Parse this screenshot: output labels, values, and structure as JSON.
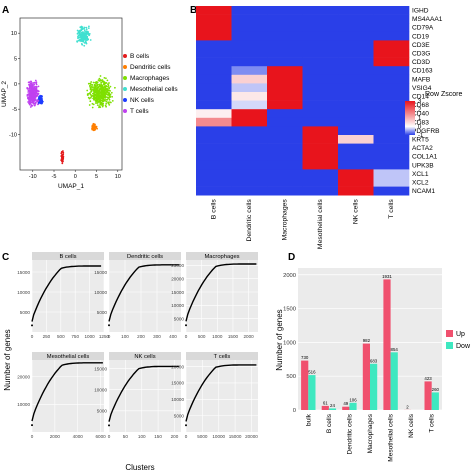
{
  "panel_labels": [
    "A",
    "B",
    "C",
    "D"
  ],
  "colors": {
    "b_cells": "#e41a1c",
    "dendritic_cells": "#ff7f00",
    "macrophages": "#7fe000",
    "mesothelial_cells": "#40e0d0",
    "nk_cells": "#1e3cff",
    "t_cells": "#c040f0",
    "heat_low": "#2a3fe8",
    "heat_mid": "#ffffff",
    "heat_high": "#e8141c",
    "up": "#f0506e",
    "down": "#3ee8c0"
  },
  "chart_data": [
    {
      "type": "scatter",
      "panel": "A",
      "xlabel": "UMAP_1",
      "ylabel": "UMAP_2",
      "xticks": [
        "-10",
        "-5",
        "0",
        "5",
        "10"
      ],
      "yticks": [
        "10",
        "5",
        "0",
        "-5",
        "-10"
      ],
      "xlim": [
        -13,
        11
      ],
      "ylim": [
        -17,
        13
      ],
      "legend": [
        "B cells",
        "Dendritic cells",
        "Macrophages",
        "Mesothelial cells",
        "NK cells",
        "T cells"
      ],
      "legend_position": "right",
      "clusters": [
        {
          "name": "B cells",
          "center": [
            -3,
            -14.5
          ],
          "spread": [
            0.4,
            1.5
          ]
        },
        {
          "name": "Dendritic cells",
          "center": [
            4.5,
            -8.5
          ],
          "spread": [
            0.8,
            0.9
          ]
        },
        {
          "name": "Macrophages",
          "center": [
            6,
            -1.8
          ],
          "spread": [
            3.5,
            3.8
          ]
        },
        {
          "name": "Mesothelial cells",
          "center": [
            2,
            9.5
          ],
          "spread": [
            2.0,
            2.5
          ]
        },
        {
          "name": "NK cells",
          "center": [
            -8.2,
            -3.2
          ],
          "spread": [
            1.0,
            1.0
          ]
        },
        {
          "name": "T cells",
          "center": [
            -10,
            -2
          ],
          "spread": [
            1.7,
            3.2
          ]
        }
      ]
    },
    {
      "type": "heatmap",
      "panel": "B",
      "columns": [
        "B cells",
        "Dendritic cells",
        "Macrophages",
        "Mesothelial cells",
        "NK cells",
        "T cells"
      ],
      "rows": [
        "IGHD",
        "MS4AAA1",
        "CD79A",
        "CD19",
        "CD3E",
        "CD3G",
        "CD3D",
        "CD163",
        "MAFB",
        "VSIG4",
        "CD14",
        "CD68",
        "CD40",
        "CD83",
        "PDGFRB",
        "KRT5",
        "ACTA2",
        "COL1A1",
        "UPK3B",
        "XCL1",
        "XCL2",
        "NCAM1"
      ],
      "values": [
        [
          3,
          -1,
          -1,
          -1,
          -1,
          -1
        ],
        [
          3,
          -1,
          -1,
          -1,
          -1,
          -1
        ],
        [
          3,
          -1,
          -1,
          -1,
          -1,
          -1
        ],
        [
          3,
          -1,
          -1,
          -1,
          -1,
          -1
        ],
        [
          -1,
          -1,
          -1,
          -1,
          -1,
          3
        ],
        [
          -1,
          -1,
          -1,
          -1,
          -1,
          3
        ],
        [
          -1,
          -1,
          -1,
          -1,
          -1,
          3
        ],
        [
          -1,
          -0.6,
          3,
          -1,
          -1,
          -1
        ],
        [
          -1,
          0.6,
          3,
          -1,
          -1,
          -1
        ],
        [
          -1,
          -0.3,
          3,
          -1,
          -1,
          -1
        ],
        [
          -1,
          0.3,
          3,
          -1,
          -1,
          -1
        ],
        [
          -1,
          -0.2,
          3,
          -1,
          -1,
          -1
        ],
        [
          0.2,
          3,
          -1,
          -1,
          -1,
          -1
        ],
        [
          1.5,
          3,
          -1,
          -1,
          -1,
          -1
        ],
        [
          -1,
          -1,
          -1,
          3,
          -1,
          -1
        ],
        [
          -1,
          -1,
          -1,
          3,
          0.6,
          -1
        ],
        [
          -1,
          -1,
          -1,
          3,
          -1,
          -1
        ],
        [
          -1,
          -1,
          -1,
          3,
          -1,
          -1
        ],
        [
          -1,
          -1,
          -1,
          3,
          -1,
          -1
        ],
        [
          -1,
          -1,
          -1,
          -1,
          3,
          -0.3
        ],
        [
          -1,
          -1,
          -1,
          -1,
          3,
          -0.3
        ],
        [
          -1,
          -1,
          -1,
          -1,
          3,
          -1
        ]
      ],
      "colorbar_title": "Row Zscore",
      "colorbar_ticks": [
        "3",
        "2",
        "1",
        "0",
        "-1"
      ],
      "zlim": [
        -1,
        3
      ]
    },
    {
      "type": "line",
      "panel": "C",
      "xlabel": "Clusters",
      "ylabel": "Number of genes",
      "facets": [
        {
          "title": "B cells",
          "xticks": [
            "0",
            "250",
            "500",
            "750",
            "1000",
            "1250"
          ],
          "xmax": 1250,
          "yticks": [
            "5000",
            "10000",
            "15000"
          ],
          "ymin": 0,
          "ymax": 18000,
          "endpoint": [
            1200,
            16500
          ]
        },
        {
          "title": "Dendritic cells",
          "xticks": [
            "0",
            "100",
            "200",
            "300",
            "400"
          ],
          "xmax": 450,
          "yticks": [
            "5000",
            "10000",
            "15000"
          ],
          "ymin": 0,
          "ymax": 18000,
          "endpoint": [
            440,
            16800
          ]
        },
        {
          "title": "Macrophages",
          "xticks": [
            "0",
            "500",
            "1000",
            "1500",
            "2000"
          ],
          "xmax": 2300,
          "yticks": [
            "5000",
            "10000",
            "15000",
            "20000",
            "25000"
          ],
          "ymin": 0,
          "ymax": 27000,
          "endpoint": [
            2250,
            25500
          ]
        },
        {
          "title": "Mesothelial cells",
          "xticks": [
            "0",
            "2000",
            "4000",
            "6000"
          ],
          "xmax": 6300,
          "yticks": [
            "10000",
            "20000"
          ],
          "ymin": 0,
          "ymax": 26000,
          "endpoint": [
            6200,
            25000
          ]
        },
        {
          "title": "NK cells",
          "xticks": [
            "0",
            "50",
            "100",
            "150",
            "200"
          ],
          "xmax": 220,
          "yticks": [
            "5000",
            "10000",
            "15000"
          ],
          "ymin": 0,
          "ymax": 17000,
          "endpoint": [
            215,
            15500
          ]
        },
        {
          "title": "T cells",
          "xticks": [
            "0",
            "5000",
            "10000",
            "15000",
            "20000"
          ],
          "xmax": 22000,
          "yticks": [
            "5000",
            "10000",
            "15000",
            "20000"
          ],
          "ymin": 0,
          "ymax": 22000,
          "endpoint": [
            21500,
            20500
          ]
        }
      ]
    },
    {
      "type": "bar",
      "panel": "D",
      "categories": [
        "bulk",
        "B cells",
        "Dendritic cells",
        "Macrophages",
        "Mesothelial cells",
        "NK cells",
        "T cells"
      ],
      "series": [
        {
          "name": "Up",
          "values": [
            730,
            61,
            49,
            982,
            1931,
            2,
            423
          ]
        },
        {
          "name": "Down",
          "values": [
            516,
            24,
            106,
            683,
            854,
            0,
            260
          ]
        }
      ],
      "value_labels": {
        "Up": [
          "730",
          "61",
          "49",
          "982",
          "1931",
          "2",
          "423"
        ],
        "Down": [
          "516",
          "24",
          "106",
          "683",
          "854",
          "",
          "260"
        ]
      },
      "ylabel": "Number of genes",
      "yticks": [
        "0",
        "500",
        "1000",
        "1500",
        "2000"
      ],
      "ylim": [
        0,
        2100
      ],
      "legend_position": "right",
      "legend_labels": [
        "Up",
        "Dow"
      ]
    }
  ]
}
